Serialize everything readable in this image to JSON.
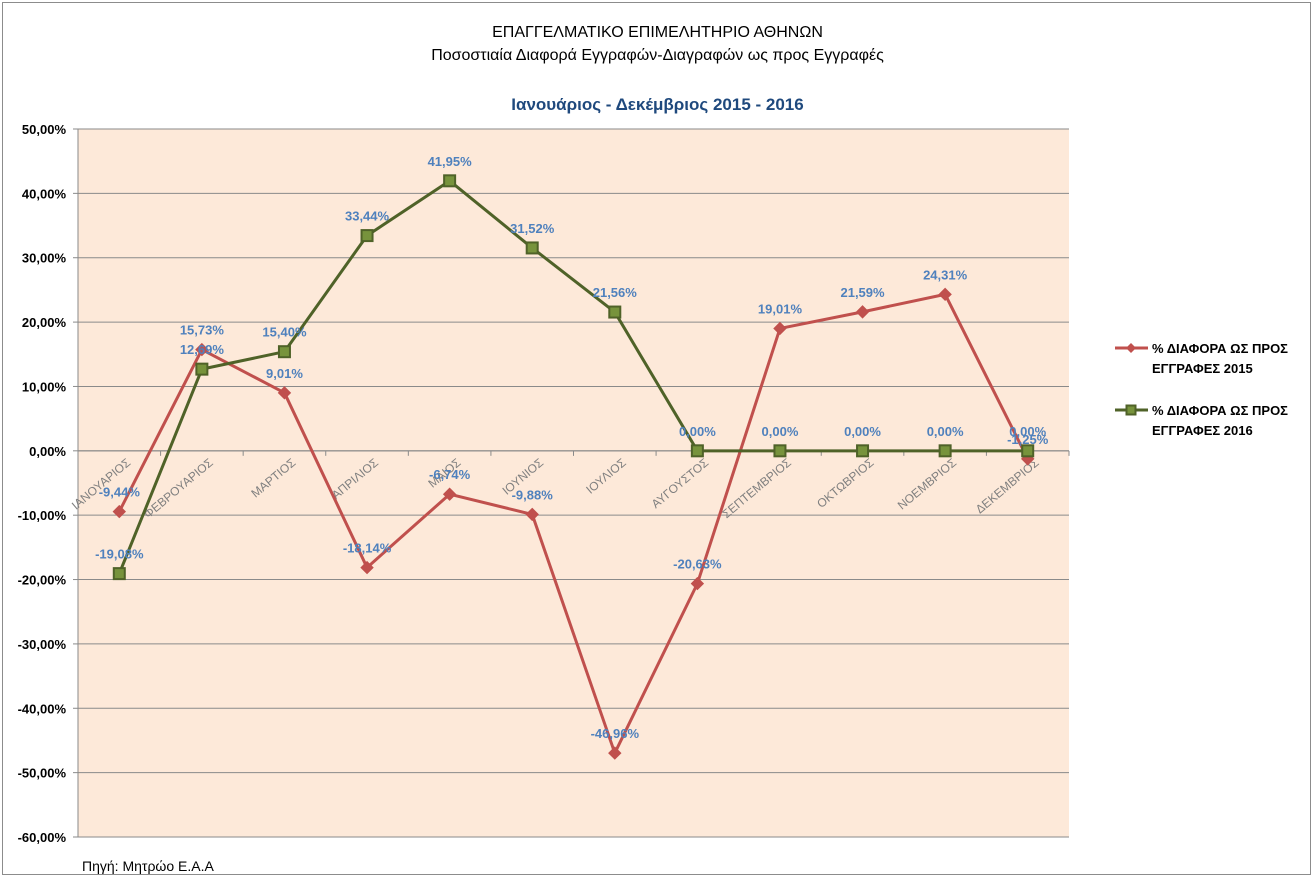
{
  "header": {
    "title_line1": "ΕΠΑΓΓΕΛΜΑΤΙΚΟ ΕΠΙΜΕΛΗΤΗΡΙΟ ΑΘΗΝΩΝ",
    "title_line2": "Ποσοστιαία Διαφορά Εγγραφών-Διαγραφών ως προς Εγγραφές",
    "subtitle": "Ιανουάριος - Δεκέμβριος 2015 - 2016"
  },
  "footer": {
    "source": "Πηγή: Μητρώο Ε.Α.Α"
  },
  "chart_data": {
    "type": "line",
    "categories": [
      "ΙΑΝΟΥΑΡΙΟΣ",
      "ΦΕΒΡΟΥΑΡΙΟΣ",
      "ΜΑΡΤΙΟΣ",
      "ΑΠΡΙΛΙΟΣ",
      "ΜΑΙΟΣ",
      "ΙΟΥΝΙΟΣ",
      "ΙΟΥΛΙΟΣ",
      "ΑΥΓΟΥΣΤΟΣ",
      "ΣΕΠΤΕΜΒΡΙΟΣ",
      "ΟΚΤΩΒΡΙΟΣ",
      "ΝΟΕΜΒΡΙΟΣ",
      "ΔΕΚΕΜΒΡΙΟΣ"
    ],
    "ylim": [
      -60,
      50
    ],
    "yticks": [
      50,
      40,
      30,
      20,
      10,
      0,
      -10,
      -20,
      -30,
      -40,
      -50,
      -60
    ],
    "ytick_labels": [
      "50,00%",
      "40,00%",
      "30,00%",
      "20,00%",
      "10,00%",
      "0,00%",
      "-10,00%",
      "-20,00%",
      "-30,00%",
      "-40,00%",
      "-50,00%",
      "-60,00%"
    ],
    "grid": true,
    "legend_position": "right",
    "plot_background": "#fde9d9",
    "series": [
      {
        "name": "% ΔΙΑΦΟΡΑ ΩΣ ΠΡΟΣ ΕΓΓΡΑΦΕΣ 2015",
        "legend_lines": [
          "% ΔΙΑΦΟΡΑ ΩΣ ΠΡΟΣ",
          "ΕΓΓΡΑΦΕΣ 2015"
        ],
        "color": "#c0504d",
        "marker": "diamond",
        "values": [
          -9.44,
          15.73,
          9.01,
          -18.14,
          -6.74,
          -9.88,
          -46.96,
          -20.63,
          19.01,
          21.59,
          24.31,
          -1.25
        ],
        "labels": [
          "-9,44%",
          "15,73%",
          "9,01%",
          "-18,14%",
          "-6,74%",
          "-9,88%",
          "-46,96%",
          "-20,63%",
          "19,01%",
          "21,59%",
          "24,31%",
          "-1,25%"
        ]
      },
      {
        "name": "% ΔΙΑΦΟΡΑ ΩΣ ΠΡΟΣ ΕΓΓΡΑΦΕΣ 2016",
        "legend_lines": [
          "% ΔΙΑΦΟΡΑ ΩΣ ΠΡΟΣ",
          "ΕΓΓΡΑΦΕΣ 2016"
        ],
        "color": "#4f6228",
        "marker": "square",
        "marker_fill": "#77933c",
        "values": [
          -19.08,
          12.69,
          15.4,
          33.44,
          41.95,
          31.52,
          21.56,
          0,
          0,
          0,
          0,
          0
        ],
        "labels": [
          "-19,08%",
          "12,69%",
          "15,40%",
          "33,44%",
          "41,95%",
          "31,52%",
          "21,56%",
          "0,00%",
          "0,00%",
          "0,00%",
          "0,00%",
          "0,00%"
        ]
      }
    ],
    "data_label_color": "#4f81bd"
  }
}
